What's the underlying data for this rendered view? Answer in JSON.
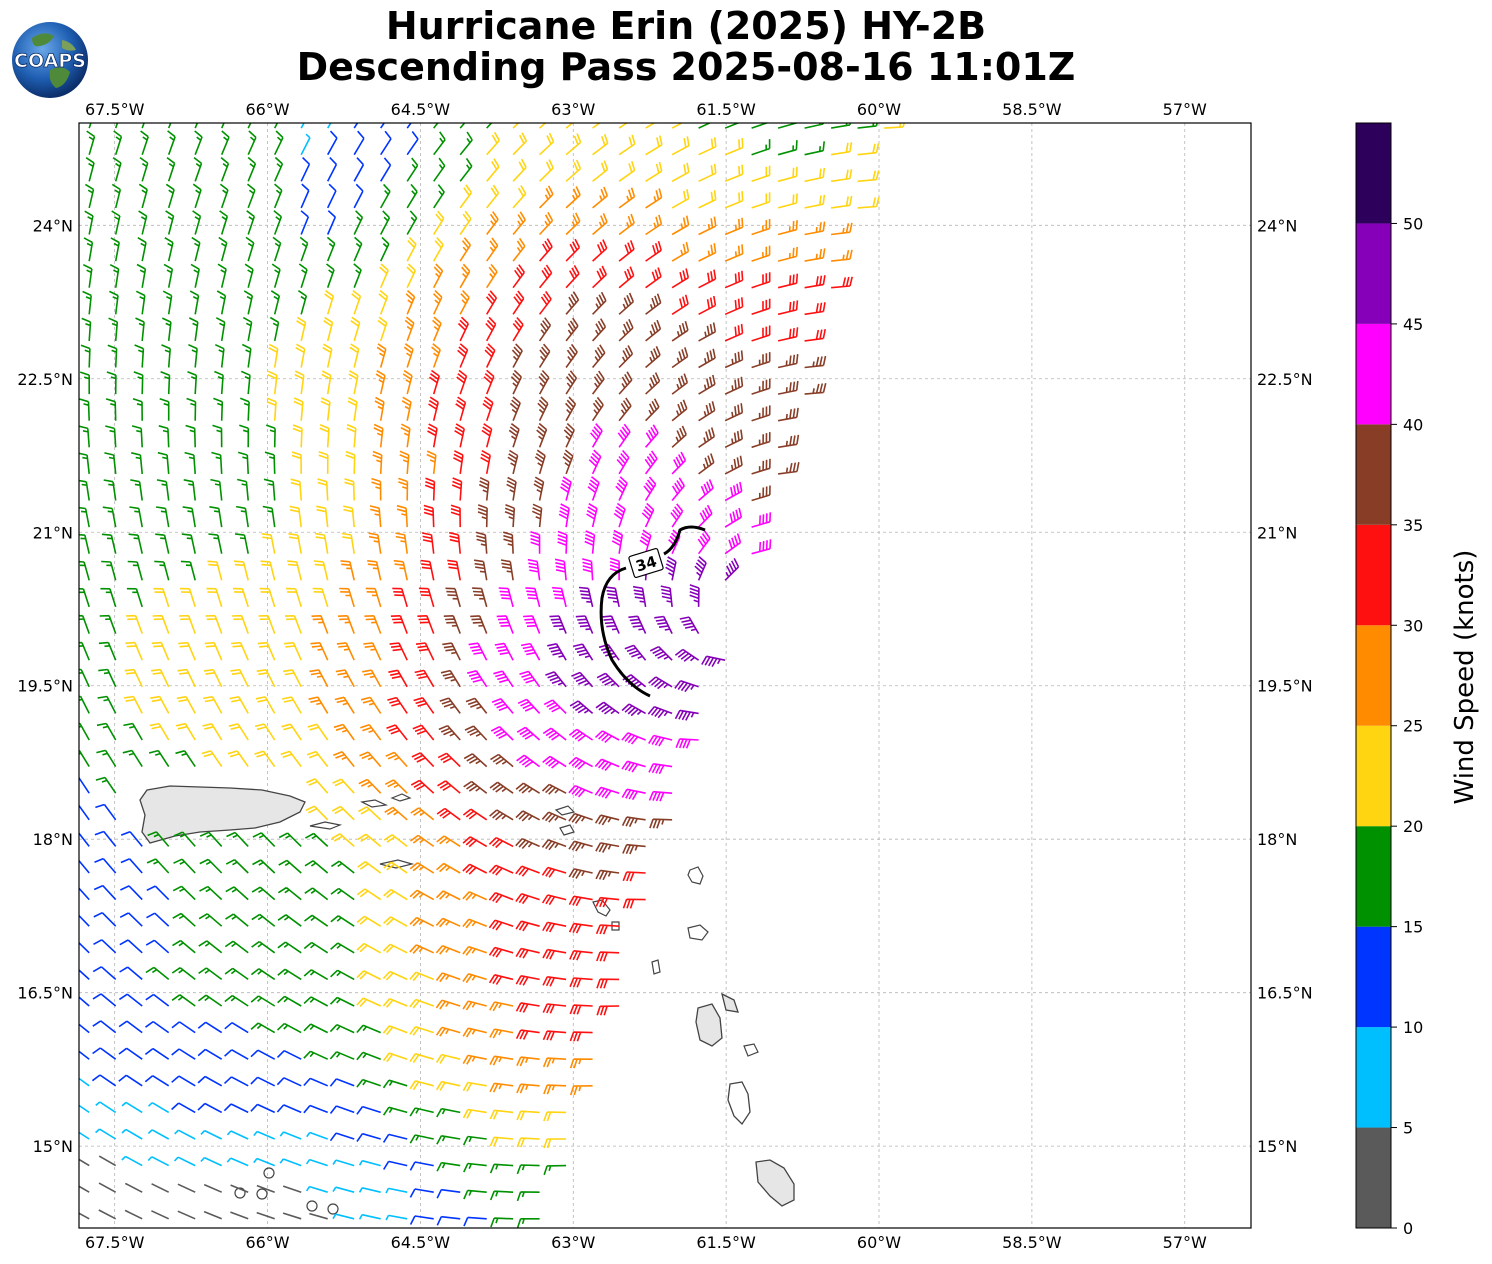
{
  "title": {
    "line1": "Hurricane Erin (2025) HY-2B",
    "line2": "Descending Pass 2025-08-16 11:01Z"
  },
  "logo": {
    "text": "COAPS"
  },
  "map": {
    "lon_range": [
      -67.85,
      -56.35
    ],
    "lat_range": [
      14.2,
      25.0
    ],
    "lon_ticks": [
      "67.5°W",
      "66°W",
      "64.5°W",
      "63°W",
      "61.5°W",
      "60°W",
      "58.5°W",
      "57°W"
    ],
    "lon_tick_values": [
      -67.5,
      -66,
      -64.5,
      -63,
      -61.5,
      -60,
      -58.5,
      -57
    ],
    "lat_ticks": [
      "24°N",
      "22.5°N",
      "21°N",
      "19.5°N",
      "18°N",
      "16.5°N",
      "15°N"
    ],
    "lat_tick_values": [
      24,
      22.5,
      21,
      19.5,
      18,
      16.5,
      15
    ],
    "grid": true,
    "storm_center": {
      "lon": -61.3,
      "lat": 20.1
    },
    "contour_label": "34"
  },
  "colorbar": {
    "label": "Wind Speed (knots)",
    "ticks": [
      "0",
      "5",
      "10",
      "15",
      "20",
      "25",
      "30",
      "35",
      "40",
      "45",
      "50"
    ],
    "bins": [
      {
        "min": 0,
        "max": 5,
        "color": "#5a5a5a"
      },
      {
        "min": 5,
        "max": 10,
        "color": "#00bfff"
      },
      {
        "min": 10,
        "max": 15,
        "color": "#0034ff"
      },
      {
        "min": 15,
        "max": 20,
        "color": "#009100"
      },
      {
        "min": 20,
        "max": 25,
        "color": "#ffd411"
      },
      {
        "min": 25,
        "max": 30,
        "color": "#ff8b00"
      },
      {
        "min": 30,
        "max": 35,
        "color": "#ff1010"
      },
      {
        "min": 35,
        "max": 40,
        "color": "#883d27"
      },
      {
        "min": 40,
        "max": 45,
        "color": "#ff00ff"
      },
      {
        "min": 45,
        "max": 50,
        "color": "#8500b8"
      },
      {
        "min": 50,
        "max": 55,
        "color": "#2d005c"
      }
    ]
  }
}
